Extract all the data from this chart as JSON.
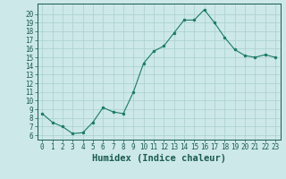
{
  "x": [
    0,
    1,
    2,
    3,
    4,
    5,
    6,
    7,
    8,
    9,
    10,
    11,
    12,
    13,
    14,
    15,
    16,
    17,
    18,
    19,
    20,
    21,
    22,
    23
  ],
  "y": [
    8.5,
    7.5,
    7.0,
    6.2,
    6.3,
    7.5,
    9.2,
    8.7,
    8.5,
    11.0,
    14.3,
    15.7,
    16.3,
    17.8,
    19.3,
    19.3,
    20.5,
    19.0,
    17.3,
    15.9,
    15.2,
    15.0,
    15.3,
    15.0
  ],
  "line_color": "#1a7a65",
  "marker": "o",
  "marker_size": 2.0,
  "bg_color": "#cce8e8",
  "grid_color": "#aacfcf",
  "xlabel": "Humidex (Indice chaleur)",
  "ylabel_ticks": [
    6,
    7,
    8,
    9,
    10,
    11,
    12,
    13,
    14,
    15,
    16,
    17,
    18,
    19,
    20
  ],
  "ylim": [
    5.5,
    21.2
  ],
  "xlim": [
    -0.5,
    23.5
  ],
  "xticks": [
    0,
    1,
    2,
    3,
    4,
    5,
    6,
    7,
    8,
    9,
    10,
    11,
    12,
    13,
    14,
    15,
    16,
    17,
    18,
    19,
    20,
    21,
    22,
    23
  ],
  "tick_color": "#1a5a50",
  "label_fontsize": 5.5,
  "xlabel_fontsize": 7.5
}
